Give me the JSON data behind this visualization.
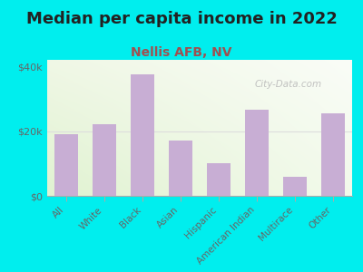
{
  "title": "Median per capita income in 2022",
  "subtitle": "Nellis AFB, NV",
  "categories": [
    "All",
    "White",
    "Black",
    "Asian",
    "Hispanic",
    "American Indian",
    "Multirace",
    "Other"
  ],
  "values": [
    19000,
    22000,
    37500,
    17000,
    10000,
    26500,
    6000,
    25500
  ],
  "bar_color": "#c8aed4",
  "background_color": "#00eeee",
  "title_color": "#222222",
  "subtitle_color": "#a05050",
  "axis_label_color": "#666666",
  "tick_color": "#666666",
  "ylim": [
    0,
    42000
  ],
  "yticks": [
    0,
    20000,
    40000
  ],
  "ytick_labels": [
    "$0",
    "$20k",
    "$40k"
  ],
  "watermark": "City-Data.com",
  "title_fontsize": 13,
  "subtitle_fontsize": 10,
  "grid_color": "#dddddd"
}
